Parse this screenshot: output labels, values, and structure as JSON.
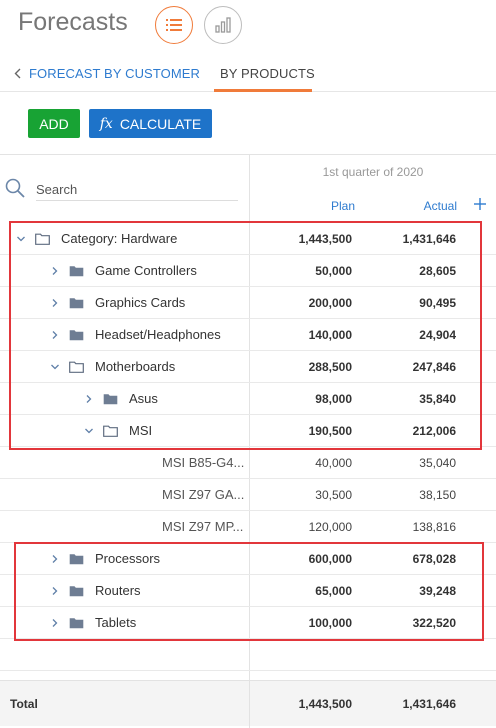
{
  "header": {
    "title": "Forecasts",
    "views": [
      {
        "name": "list-view",
        "icon": "list-icon",
        "active": true
      },
      {
        "name": "chart-view",
        "icon": "bar-chart-icon",
        "active": false
      }
    ]
  },
  "tabs": [
    {
      "label": "FORECAST BY CUSTOMER",
      "icon": "chevron-left-icon",
      "active": false
    },
    {
      "label": "BY PRODUCTS",
      "active": true
    }
  ],
  "toolbar": {
    "add_label": "ADD",
    "calculate_icon": "fx",
    "calculate_label": "CALCULATE"
  },
  "grid": {
    "search_placeholder": "Search",
    "period": "1st quarter of 2020",
    "columns": {
      "plan": "Plan",
      "actual": "Actual"
    },
    "rows": [
      {
        "name": "Category: Hardware",
        "level": 0,
        "type": "folder-open",
        "expanded": true,
        "plan": "1,443,500",
        "actual": "1,431,646"
      },
      {
        "name": "Game Controllers",
        "level": 1,
        "type": "folder",
        "expanded": false,
        "plan": "50,000",
        "actual": "28,605"
      },
      {
        "name": "Graphics Cards",
        "level": 1,
        "type": "folder",
        "expanded": false,
        "plan": "200,000",
        "actual": "90,495"
      },
      {
        "name": "Headset/Headphones",
        "level": 1,
        "type": "folder",
        "expanded": false,
        "plan": "140,000",
        "actual": "24,904"
      },
      {
        "name": "Motherboards",
        "level": 1,
        "type": "folder-open",
        "expanded": true,
        "plan": "288,500",
        "actual": "247,846"
      },
      {
        "name": "Asus",
        "level": 2,
        "type": "folder",
        "expanded": false,
        "plan": "98,000",
        "actual": "35,840"
      },
      {
        "name": "MSI",
        "level": 2,
        "type": "folder-open",
        "expanded": true,
        "plan": "190,500",
        "actual": "212,006"
      },
      {
        "name": "MSI B85-G4...",
        "level": 3,
        "type": "leaf",
        "plan": "40,000",
        "actual": "35,040"
      },
      {
        "name": "MSI Z97 GA...",
        "level": 3,
        "type": "leaf",
        "plan": "30,500",
        "actual": "38,150"
      },
      {
        "name": "MSI Z97 MP...",
        "level": 3,
        "type": "leaf",
        "plan": "120,000",
        "actual": "138,816"
      },
      {
        "name": "Processors",
        "level": 1,
        "type": "folder",
        "expanded": false,
        "plan": "600,000",
        "actual": "678,028"
      },
      {
        "name": "Routers",
        "level": 1,
        "type": "folder",
        "expanded": false,
        "plan": "65,000",
        "actual": "39,248"
      },
      {
        "name": "Tablets",
        "level": 1,
        "type": "folder",
        "expanded": false,
        "plan": "100,000",
        "actual": "322,520"
      }
    ],
    "total": {
      "label": "Total",
      "plan": "1,443,500",
      "actual": "1,431,646"
    }
  },
  "colors": {
    "accent": "#f07b3a",
    "add": "#18a334",
    "calculate": "#1e73c9",
    "link": "#2e7bcf",
    "highlight": "#e2363b"
  }
}
